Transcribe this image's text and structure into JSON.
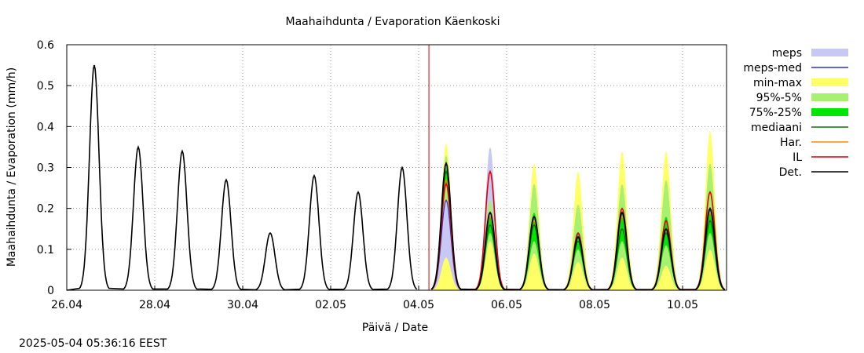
{
  "chart_data": {
    "type": "area",
    "title": "Maahaihdunta / Evaporation  Käenkoski",
    "xlabel": "Päivä / Date",
    "ylabel": "Maahaihdunta / Evaporation (mm/h)",
    "ylim": [
      0,
      0.6
    ],
    "yticks": [
      "0",
      "0.1",
      "0.2",
      "0.3",
      "0.4",
      "0.5",
      "0.6"
    ],
    "xlim": [
      "2025-04-26",
      "2025-05-11"
    ],
    "xticks": [
      "26.04",
      "28.04",
      "30.04",
      "02.05",
      "04.05",
      "06.05",
      "08.05",
      "10.05"
    ],
    "grid": true,
    "legend_position": "right",
    "now_marker": {
      "date": "2025-05-04 05:36",
      "color": "#e00000"
    },
    "daily_peak_hour": 15,
    "colors": {
      "meps": "#c8c8f5",
      "meps-med": "#3030c8",
      "min-max": "#ffff66",
      "95%-5%": "#a8f070",
      "75%-25%": "#00e600",
      "mediaani": "#007800",
      "Har.": "#ff8c00",
      "IL": "#e00000",
      "Det.": "#000000"
    },
    "legend": [
      {
        "name": "meps",
        "style": "band"
      },
      {
        "name": "meps-med",
        "style": "line"
      },
      {
        "name": "min-max",
        "style": "band"
      },
      {
        "name": "95%-5%",
        "style": "band"
      },
      {
        "name": "75%-25%",
        "style": "band"
      },
      {
        "name": "mediaani",
        "style": "line"
      },
      {
        "name": "Har.",
        "style": "line"
      },
      {
        "name": "IL",
        "style": "line"
      },
      {
        "name": "Det.",
        "style": "line"
      }
    ],
    "observed_daily_peaks": [
      {
        "date": "2025-04-26",
        "peak": 0.55
      },
      {
        "date": "2025-04-27",
        "peak": 0.35
      },
      {
        "date": "2025-04-28",
        "peak": 0.34
      },
      {
        "date": "2025-04-29",
        "peak": 0.27
      },
      {
        "date": "2025-04-30",
        "peak": 0.14
      },
      {
        "date": "2025-05-01",
        "peak": 0.28
      },
      {
        "date": "2025-05-02",
        "peak": 0.24
      },
      {
        "date": "2025-05-03",
        "peak": 0.3
      }
    ],
    "forecast_daily": [
      {
        "date": "2025-05-04",
        "det": 0.31,
        "median": 0.29,
        "il": 0.26,
        "har": 0.27,
        "p25": 0.26,
        "p75": 0.3,
        "p5": 0.22,
        "p95": 0.33,
        "min": 0.18,
        "max": 0.36,
        "meps_med": 0.22,
        "meps_low": 0.08,
        "meps_high": 0.23
      },
      {
        "date": "2025-05-05",
        "det": 0.19,
        "median": 0.16,
        "il": 0.29,
        "har": 0.18,
        "p25": 0.14,
        "p75": 0.18,
        "p5": 0.12,
        "p95": 0.22,
        "min": 0.11,
        "max": 0.33,
        "meps_med": 0.18,
        "meps_low": 0.12,
        "meps_high": 0.35
      },
      {
        "date": "2025-05-06",
        "det": 0.18,
        "median": 0.16,
        "il": 0.18,
        "har": 0.17,
        "p25": 0.12,
        "p75": 0.19,
        "p5": 0.09,
        "p95": 0.26,
        "min": 0.06,
        "max": 0.31,
        "meps_med": 0.16,
        "meps_low": 0.13,
        "meps_high": 0.26
      },
      {
        "date": "2025-05-07",
        "det": 0.13,
        "median": 0.12,
        "il": 0.14,
        "har": 0.13,
        "p25": 0.1,
        "p75": 0.14,
        "p5": 0.07,
        "p95": 0.21,
        "min": 0.05,
        "max": 0.29,
        "meps_med": 0.13,
        "meps_low": 0.1,
        "meps_high": 0.16
      },
      {
        "date": "2025-05-08",
        "det": 0.19,
        "median": 0.15,
        "il": 0.2,
        "har": 0.18,
        "p25": 0.12,
        "p75": 0.19,
        "p5": 0.08,
        "p95": 0.26,
        "min": 0.05,
        "max": 0.34,
        "meps_med": 0.15,
        "meps_low": 0.1,
        "meps_high": 0.2
      },
      {
        "date": "2025-05-09",
        "det": 0.15,
        "median": 0.14,
        "il": 0.17,
        "har": 0.15,
        "p25": 0.11,
        "p75": 0.18,
        "p5": 0.06,
        "p95": 0.27,
        "min": 0.04,
        "max": 0.34,
        "meps_med": 0.14,
        "meps_low": 0.1,
        "meps_high": 0.17
      },
      {
        "date": "2025-05-10",
        "det": 0.2,
        "median": 0.17,
        "il": 0.24,
        "har": 0.19,
        "p25": 0.14,
        "p75": 0.2,
        "p5": 0.1,
        "p95": 0.31,
        "min": 0.08,
        "max": 0.39,
        "meps_med": 0.17,
        "meps_low": 0.12,
        "meps_high": 0.22
      }
    ]
  },
  "timestamp": "2025-05-04 05:36:16 EEST"
}
